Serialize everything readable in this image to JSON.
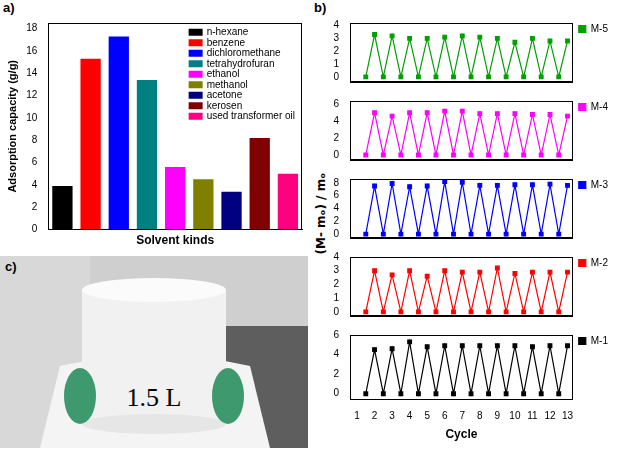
{
  "chart_data": [
    {
      "panel": "a)",
      "type": "bar",
      "categories": [
        "n-hexane",
        "benzene",
        "dichloromethane",
        "tetrahydrofuran",
        "ethanol",
        "methanol",
        "acetone",
        "kerosen",
        "used transformer oil"
      ],
      "values": [
        3.9,
        15.3,
        17.3,
        13.4,
        5.6,
        4.5,
        3.4,
        8.2,
        5.0
      ],
      "colors": [
        "#000000",
        "#ff0000",
        "#0000ff",
        "#008080",
        "#ff00ff",
        "#808000",
        "#000080",
        "#800000",
        "#ff0080"
      ],
      "xlabel": "Solvent kinds",
      "ylabel": "Adsorption capacity (g/g)",
      "ylim": [
        0,
        18.5
      ],
      "yticks": [
        0,
        2,
        4,
        6,
        8,
        10,
        12,
        14,
        16,
        18
      ],
      "grid": false,
      "legend": "upper right",
      "tick_labels": "y"
    },
    {
      "panel": "b)",
      "type": "line",
      "x": [
        1.5,
        2,
        2.5,
        3,
        3.5,
        4,
        4.5,
        5,
        5.5,
        6,
        6.5,
        7,
        7.5,
        8,
        8.5,
        9,
        9.5,
        10,
        10.5,
        11,
        11.5,
        12,
        12.5,
        13
      ],
      "series": [
        {
          "name": "M-5",
          "color": "#00a000",
          "marker": "square",
          "values": [
            0,
            3.3,
            0,
            3.2,
            0,
            3.0,
            0,
            3.0,
            0,
            3.1,
            0,
            3.2,
            0,
            3.1,
            0,
            3.0,
            0,
            2.7,
            0,
            3.0,
            0,
            2.8,
            0,
            2.8
          ]
        }
      ],
      "xlim": [
        0.6,
        13.3
      ],
      "xticks": [
        1,
        2,
        3,
        4,
        5,
        6,
        7,
        8,
        9,
        10,
        11,
        12,
        13
      ],
      "ylim": [
        -0.4,
        4.2
      ],
      "yticks": [
        0,
        1,
        2,
        3,
        4
      ],
      "grid": false,
      "legend": "right",
      "tick_labels": "y"
    },
    {
      "type": "line",
      "x": [
        1.5,
        2,
        2.5,
        3,
        3.5,
        4,
        4.5,
        5,
        5.5,
        6,
        6.5,
        7,
        7.5,
        8,
        8.5,
        9,
        9.5,
        10,
        10.5,
        11,
        11.5,
        12,
        12.5,
        13
      ],
      "series": [
        {
          "name": "M-4",
          "color": "#ff00ff",
          "marker": "square",
          "values": [
            0,
            5.0,
            0,
            4.6,
            0,
            5.0,
            0,
            5.0,
            0,
            5.2,
            0,
            5.2,
            0,
            4.9,
            0,
            4.9,
            0,
            4.9,
            0,
            4.8,
            0,
            4.8,
            0,
            4.6
          ]
        }
      ],
      "xlim": [
        0.6,
        13.3
      ],
      "xticks": [
        1,
        2,
        3,
        4,
        5,
        6,
        7,
        8,
        9,
        10,
        11,
        12,
        13
      ],
      "ylim": [
        -0.6,
        6.4
      ],
      "yticks": [
        0,
        2,
        4,
        6
      ],
      "grid": false,
      "legend": "right",
      "tick_labels": "y"
    },
    {
      "type": "line",
      "x": [
        1.5,
        2,
        2.5,
        3,
        3.5,
        4,
        4.5,
        5,
        5.5,
        6,
        6.5,
        7,
        7.5,
        8,
        8.5,
        9,
        9.5,
        10,
        10.5,
        11,
        11.5,
        12,
        12.5,
        13
      ],
      "series": [
        {
          "name": "M-3",
          "color": "#0000ff",
          "marker": "square",
          "values": [
            0,
            7.5,
            0,
            7.9,
            0,
            7.4,
            0,
            7.5,
            0,
            8.2,
            0,
            8.1,
            0,
            7.6,
            0,
            7.6,
            0,
            7.7,
            0,
            7.7,
            0,
            7.8,
            0,
            7.6
          ]
        }
      ],
      "xlim": [
        0.6,
        13.3
      ],
      "xticks": [
        1,
        2,
        3,
        4,
        5,
        6,
        7,
        8,
        9,
        10,
        11,
        12,
        13
      ],
      "ylim": [
        -0.6,
        8.6
      ],
      "yticks": [
        0,
        2,
        4,
        6,
        8
      ],
      "grid": false,
      "legend": "right",
      "tick_labels": "y"
    },
    {
      "type": "line",
      "x": [
        1.5,
        2,
        2.5,
        3,
        3.5,
        4,
        4.5,
        5,
        5.5,
        6,
        6.5,
        7,
        7.5,
        8,
        8.5,
        9,
        9.5,
        10,
        10.5,
        11,
        11.5,
        12,
        12.5,
        13
      ],
      "series": [
        {
          "name": "M-2",
          "color": "#ff0000",
          "marker": "square",
          "values": [
            0,
            3.0,
            0,
            2.7,
            0,
            3.0,
            0,
            2.6,
            0,
            3.0,
            0,
            2.9,
            0,
            2.9,
            0,
            3.2,
            0,
            2.8,
            0,
            2.9,
            0,
            2.9,
            0,
            2.9
          ]
        }
      ],
      "xlim": [
        0.6,
        13.3
      ],
      "xticks": [
        1,
        2,
        3,
        4,
        5,
        6,
        7,
        8,
        9,
        10,
        11,
        12,
        13
      ],
      "ylim": [
        -0.3,
        4
      ],
      "yticks": [
        0,
        1,
        2,
        3,
        4
      ],
      "grid": false,
      "legend": "right",
      "tick_labels": "y"
    },
    {
      "type": "line",
      "x": [
        1.5,
        2,
        2.5,
        3,
        3.5,
        4,
        4.5,
        5,
        5.5,
        6,
        6.5,
        7,
        7.5,
        8,
        8.5,
        9,
        9.5,
        10,
        10.5,
        11,
        11.5,
        12,
        12.5,
        13
      ],
      "series": [
        {
          "name": "M-1",
          "color": "#000000",
          "marker": "square",
          "values": [
            0,
            4.5,
            0,
            4.6,
            0,
            5.3,
            0,
            4.8,
            0,
            4.9,
            0,
            4.9,
            0,
            4.9,
            0,
            4.9,
            0,
            4.9,
            0,
            4.8,
            0,
            4.9,
            0,
            4.9
          ]
        }
      ],
      "xlabel": "Cycle",
      "ylabel": "(M- mₒ) / mₒ",
      "xlim": [
        0.6,
        13.3
      ],
      "xticks": [
        1,
        2,
        3,
        4,
        5,
        6,
        7,
        8,
        9,
        10,
        11,
        12,
        13
      ],
      "ylim": [
        -0.6,
        6
      ],
      "yticks": [
        0,
        2,
        4,
        6
      ],
      "grid": false,
      "legend": "right"
    }
  ],
  "photo": {
    "panel": "c)",
    "label": "1.5 L"
  }
}
